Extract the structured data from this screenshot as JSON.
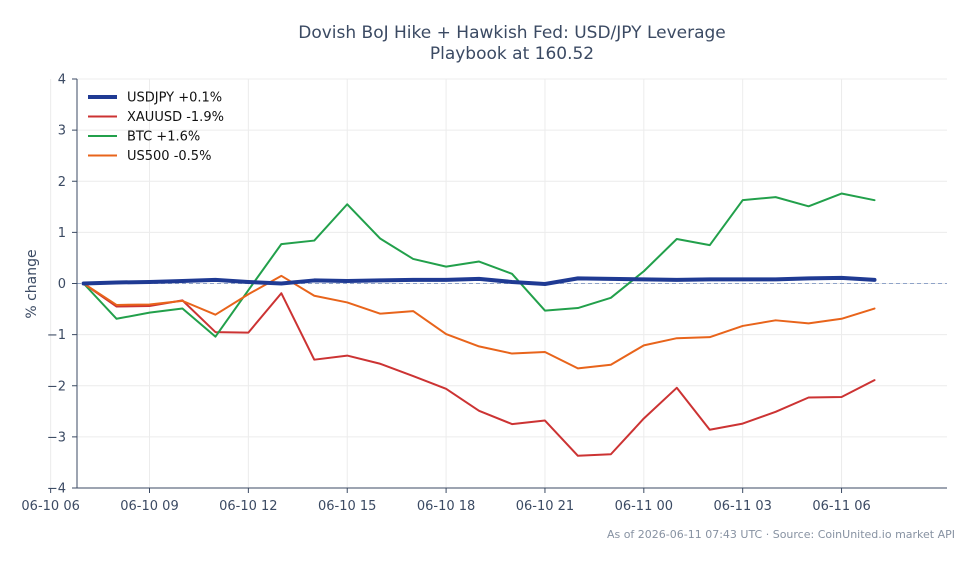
{
  "chart_data": {
    "type": "line",
    "title_lines": [
      "Dovish BoJ Hike + Hawkish Fed: USD/JPY Leverage",
      "Playbook at 160.52"
    ],
    "ylabel": "% change",
    "xlabel": "",
    "ylim": [
      -4,
      4
    ],
    "yticks": [
      "4",
      "3",
      "2",
      "1",
      "0",
      "−1",
      "−2",
      "−3",
      "−4"
    ],
    "ytick_values": [
      4,
      3,
      2,
      1,
      0,
      -1,
      -2,
      -3,
      -4
    ],
    "xlim": [
      -0.2,
      26.2
    ],
    "xticks": [
      "06-10 06",
      "06-10 09",
      "06-10 12",
      "06-10 15",
      "06-10 18",
      "06-10 21",
      "06-11 00",
      "06-11 03",
      "06-11 06"
    ],
    "xtick_positions": [
      -1,
      2,
      5,
      8,
      11,
      14,
      17,
      20,
      23
    ],
    "x": [
      0,
      1,
      2,
      3,
      4,
      5,
      6,
      7,
      8,
      9,
      10,
      11,
      12,
      13,
      14,
      15,
      16,
      17,
      18,
      19,
      20,
      21,
      22,
      23,
      24
    ],
    "x_start_label": "06-10 07",
    "x_step": "1 hour",
    "grid": true,
    "baseline": 0,
    "legend_position": "top-left",
    "series": [
      {
        "name": "USDJPY +0.1%",
        "color": "#1f3a93",
        "width": 4,
        "values": [
          0.0,
          0.02,
          0.03,
          0.05,
          0.07,
          0.03,
          0.0,
          0.06,
          0.05,
          0.06,
          0.07,
          0.07,
          0.09,
          0.03,
          -0.01,
          0.1,
          0.09,
          0.08,
          0.07,
          0.08,
          0.08,
          0.08,
          0.1,
          0.11,
          0.07
        ]
      },
      {
        "name": "XAUUSD -1.9%",
        "color": "#cc3333",
        "width": 2,
        "values": [
          0.0,
          -0.45,
          -0.44,
          -0.33,
          -0.95,
          -0.96,
          -0.19,
          -1.49,
          -1.41,
          -1.57,
          -1.81,
          -2.06,
          -2.49,
          -2.75,
          -2.68,
          -3.37,
          -3.34,
          -2.64,
          -2.04,
          -2.86,
          -2.74,
          -2.51,
          -2.23,
          -2.22,
          -1.89
        ]
      },
      {
        "name": "BTC +1.6%",
        "color": "#22a04b",
        "width": 2,
        "values": [
          0.0,
          -0.69,
          -0.57,
          -0.49,
          -1.04,
          -0.13,
          0.77,
          0.84,
          1.55,
          0.88,
          0.48,
          0.33,
          0.43,
          0.19,
          -0.53,
          -0.48,
          -0.28,
          0.24,
          0.87,
          0.75,
          1.63,
          1.69,
          1.51,
          1.76,
          1.63
        ]
      },
      {
        "name": "US500 -0.5%",
        "color": "#e8641b",
        "width": 2,
        "values": [
          0.0,
          -0.42,
          -0.41,
          -0.34,
          -0.61,
          -0.21,
          0.15,
          -0.24,
          -0.37,
          -0.59,
          -0.54,
          -0.99,
          -1.23,
          -1.37,
          -1.34,
          -1.66,
          -1.59,
          -1.21,
          -1.07,
          -1.05,
          -0.83,
          -0.72,
          -0.78,
          -0.69,
          -0.49
        ]
      }
    ]
  },
  "footer": "As of 2026-06-11 07:43 UTC · Source: CoinUnited.io market API",
  "colors": {
    "axis": "#3b4a63",
    "grid": "#ececec",
    "baseline": "#8fa3c8"
  }
}
